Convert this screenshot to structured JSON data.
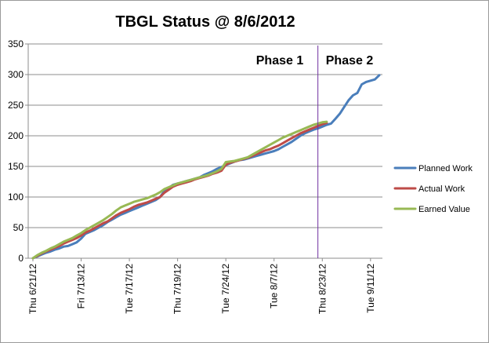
{
  "chart_data": {
    "type": "line",
    "title": "TBGL Status @ 8/6/2012",
    "xlabel": "",
    "ylabel": "",
    "ylim": [
      0,
      350
    ],
    "yticks": [
      0,
      50,
      100,
      150,
      200,
      250,
      300,
      350
    ],
    "x_tick_labels": [
      "Thu 6/21/12",
      "Fri 7/13/12",
      "Tue 7/17/12",
      "Thu 7/19/12",
      "Tue 7/24/12",
      "Tue 8/7/12",
      "Thu 8/23/12",
      "Tue 9/11/12"
    ],
    "x_tick_index": [
      0,
      11,
      22,
      33,
      44,
      55,
      66,
      77
    ],
    "x_count": 80,
    "grid": "horizontal",
    "legend_position": "right",
    "annotations": {
      "phase_1_label": "Phase 1",
      "phase_2_label": "Phase 2",
      "divider_index": 65
    },
    "series": [
      {
        "name": "Planned Work",
        "color": "#4a7ebb",
        "values": [
          0,
          3,
          6,
          9,
          11,
          14,
          16,
          19,
          20,
          23,
          26,
          32,
          40,
          43,
          46,
          50,
          54,
          59,
          63,
          67,
          71,
          74,
          77,
          80,
          83,
          86,
          89,
          92,
          95,
          100,
          110,
          115,
          120,
          122,
          124,
          126,
          128,
          130,
          132,
          136,
          139,
          142,
          146,
          149,
          152,
          155,
          158,
          160,
          161,
          163,
          165,
          167,
          169,
          171,
          173,
          175,
          178,
          182,
          186,
          190,
          195,
          200,
          204,
          207,
          210,
          212,
          215,
          218,
          220,
          228,
          236,
          247,
          258,
          266,
          270,
          284,
          288,
          290,
          292,
          299
        ]
      },
      {
        "name": "Actual Work",
        "color": "#be4b48",
        "values": [
          0,
          4,
          8,
          11,
          14,
          17,
          20,
          24,
          27,
          30,
          33,
          37,
          42,
          45,
          49,
          53,
          57,
          60,
          65,
          70,
          74,
          77,
          80,
          84,
          87,
          89,
          91,
          94,
          97,
          100,
          107,
          112,
          117,
          120,
          122,
          124,
          126,
          129,
          131,
          133,
          135,
          138,
          140,
          143,
          153,
          156,
          158,
          160,
          162,
          164,
          167,
          170,
          173,
          176,
          178,
          181,
          184,
          188,
          192,
          196,
          200,
          204,
          207,
          210,
          213,
          216,
          219,
          221
        ]
      },
      {
        "name": "Earned Value",
        "color": "#98b954",
        "values": [
          0,
          5,
          9,
          12,
          16,
          19,
          23,
          27,
          30,
          33,
          37,
          41,
          46,
          50,
          54,
          58,
          62,
          67,
          72,
          78,
          83,
          86,
          89,
          92,
          94,
          96,
          98,
          101,
          104,
          108,
          113,
          116,
          119,
          122,
          124,
          126,
          128,
          130,
          132,
          134,
          136,
          139,
          142,
          146,
          157,
          158,
          159,
          161,
          163,
          165,
          169,
          173,
          177,
          181,
          185,
          189,
          193,
          197,
          200,
          203,
          206,
          209,
          212,
          215,
          218,
          220,
          222,
          223
        ]
      }
    ]
  }
}
